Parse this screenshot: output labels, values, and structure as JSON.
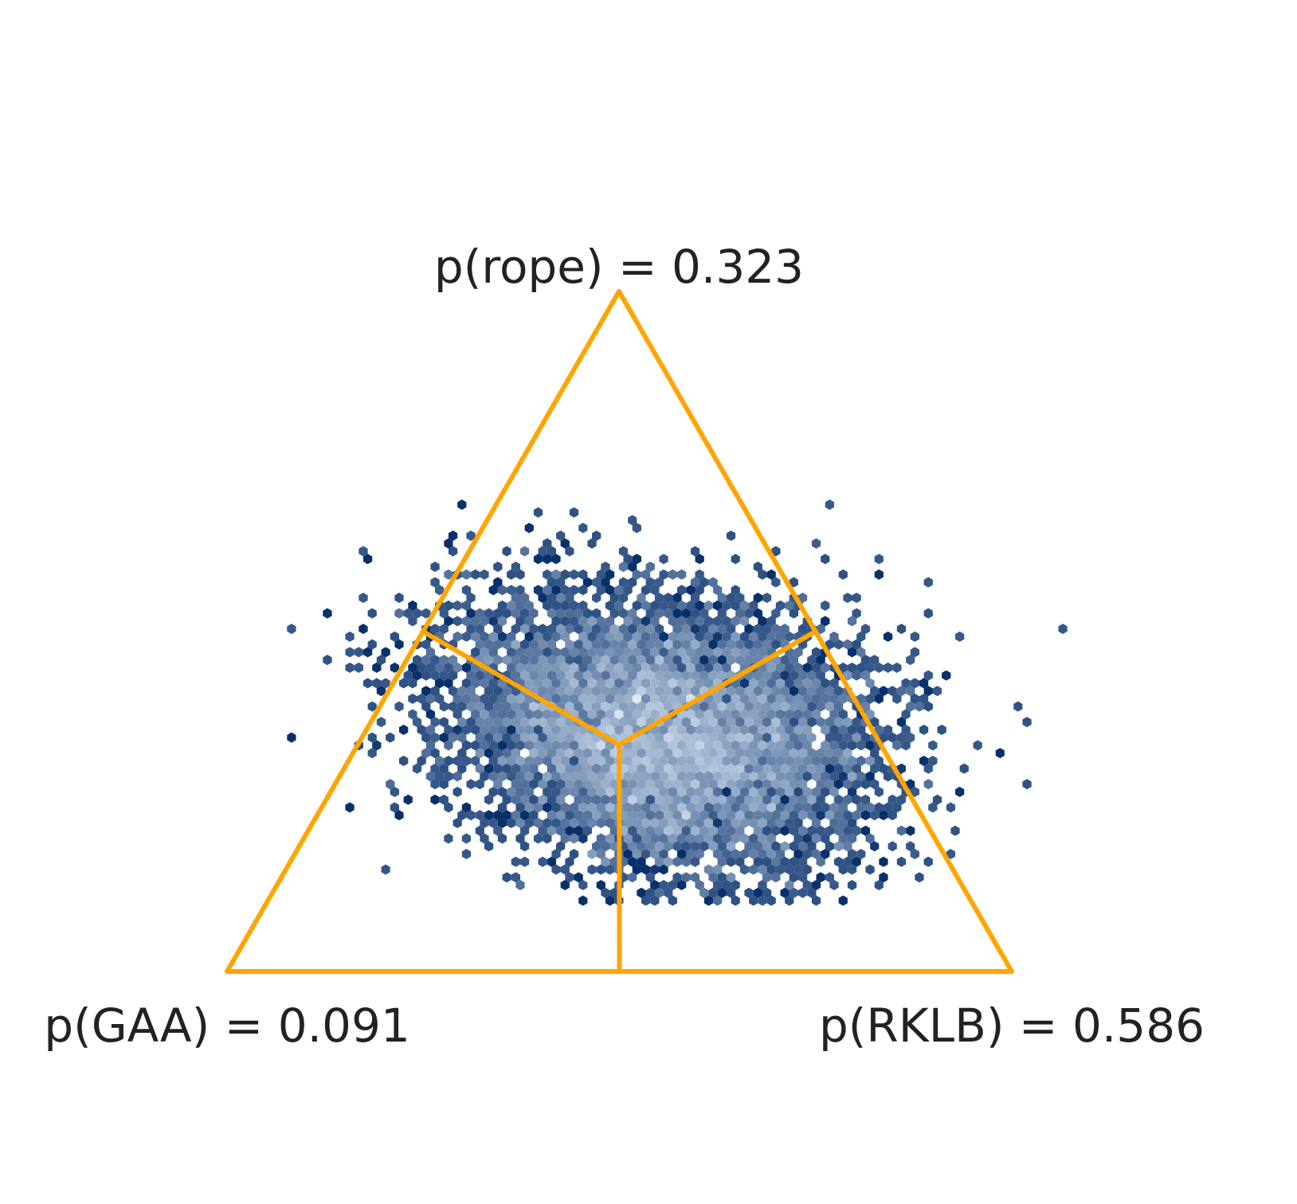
{
  "chart_data": {
    "type": "ternary",
    "corner_labels": {
      "top": "p(rope) = 0.323",
      "left": "p(GAA) = 0.091",
      "right": "p(RKLB) = 0.586"
    },
    "color": "#ffa500"
  }
}
